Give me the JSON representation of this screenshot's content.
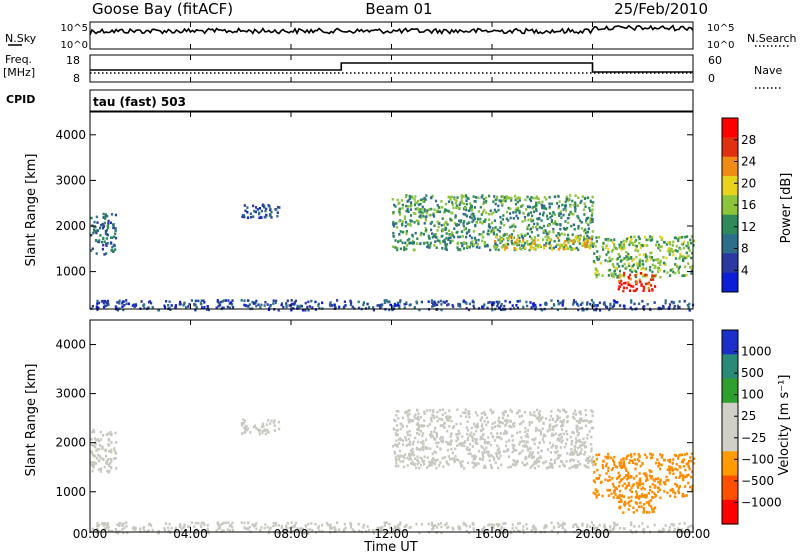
{
  "header": {
    "station": "Goose Bay (fitACF)",
    "beam": "Beam 01",
    "date": "25/Feb/2010"
  },
  "strip_panels": {
    "nsky": {
      "left_label": "N.Sky",
      "left_ticks": [
        "10^5",
        "10^0"
      ],
      "right_label": "N.Search",
      "right_ticks": [
        "10^5",
        "10^0"
      ]
    },
    "freq": {
      "left_label_line1": "Freq.",
      "left_label_line2": "[MHz]",
      "left_ticks": [
        "18",
        "8"
      ],
      "right_label": "Nave",
      "right_ticks": [
        "60",
        "0"
      ]
    },
    "cpid": {
      "left_label": "CPID",
      "text": "tau (fast) 503"
    }
  },
  "colors": {
    "background": "#ffffff",
    "frame": "#000000",
    "power_scale": [
      "#0b1fd6",
      "#2a3aa0",
      "#2d6e8a",
      "#2f8a5a",
      "#8cc43c",
      "#e8d21e",
      "#f08c14",
      "#e03010",
      "#ff0000"
    ],
    "velocity_scale": [
      "#ff0000",
      "#ff5000",
      "#ff9a00",
      "#d0d0c8",
      "#d0d0c8",
      "#2ea02e",
      "#2a8a78",
      "#1a30c8"
    ]
  },
  "chart_data": [
    {
      "type": "heatmap",
      "panel": "power",
      "xlabel": "",
      "ylabel": "Slant Range [km]",
      "ylim": [
        180,
        4500
      ],
      "xlim_hours": [
        0,
        24
      ],
      "yticks": [
        "1000",
        "2000",
        "3000",
        "4000"
      ],
      "colorbar_label": "Power [dB]",
      "colorbar_ticks": [
        "28",
        "24",
        "20",
        "16",
        "12",
        "8",
        "4"
      ],
      "colorbar_range": [
        0,
        30
      ],
      "echo_regions": [
        {
          "t0": 0.0,
          "t1": 1.0,
          "r0": 1400,
          "r1": 2300,
          "value": 8
        },
        {
          "t0": 6.0,
          "t1": 7.5,
          "r0": 2200,
          "r1": 2500,
          "value": 6
        },
        {
          "t0": 12.0,
          "t1": 20.0,
          "r0": 1500,
          "r1": 2700,
          "value": 12
        },
        {
          "t0": 16.0,
          "t1": 20.0,
          "r0": 1500,
          "r1": 1800,
          "value": 18
        },
        {
          "t0": 20.0,
          "t1": 24.0,
          "r0": 900,
          "r1": 1800,
          "value": 14
        },
        {
          "t0": 21.0,
          "t1": 22.5,
          "r0": 600,
          "r1": 1000,
          "value": 26
        },
        {
          "t0": 0.0,
          "t1": 24.0,
          "r0": 180,
          "r1": 400,
          "value": 6
        }
      ]
    },
    {
      "type": "heatmap",
      "panel": "velocity",
      "xlabel": "Time UT",
      "ylabel": "Slant Range [km]",
      "ylim": [
        180,
        4500
      ],
      "xlim_hours": [
        0,
        24
      ],
      "yticks": [
        "1000",
        "2000",
        "3000",
        "4000"
      ],
      "xticks": [
        "00:00",
        "04:00",
        "08:00",
        "12:00",
        "16:00",
        "20:00",
        "00:00"
      ],
      "colorbar_label": "Velocity [m s⁻¹]",
      "colorbar_ticks": [
        "1000",
        "500",
        "100",
        "25",
        "−25",
        "−100",
        "−500",
        "−1000"
      ],
      "echo_regions": [
        {
          "t0": 0.0,
          "t1": 1.0,
          "r0": 1400,
          "r1": 2300,
          "value": 0
        },
        {
          "t0": 6.0,
          "t1": 7.5,
          "r0": 2200,
          "r1": 2500,
          "value": 0
        },
        {
          "t0": 12.0,
          "t1": 20.0,
          "r0": 1500,
          "r1": 2700,
          "value": 0
        },
        {
          "t0": 20.0,
          "t1": 24.0,
          "r0": 900,
          "r1": 1800,
          "value": -300
        },
        {
          "t0": 21.0,
          "t1": 22.5,
          "r0": 600,
          "r1": 1000,
          "value": -300
        },
        {
          "t0": 0.0,
          "t1": 24.0,
          "r0": 180,
          "r1": 400,
          "value": -50
        }
      ]
    }
  ]
}
